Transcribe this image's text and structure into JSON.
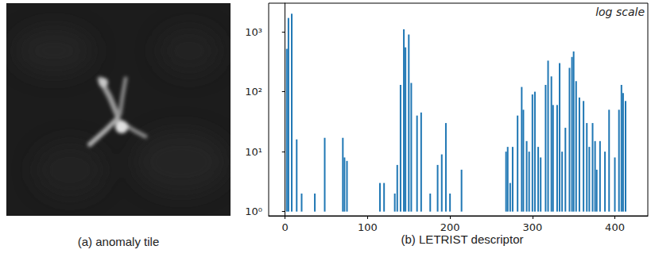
{
  "panel_a": {
    "caption": "(a) anomaly tile"
  },
  "chart_data": {
    "type": "bar",
    "title": "(b) LETRIST descriptor",
    "annotations": [
      "log scale"
    ],
    "log": "y",
    "grid": false,
    "color": "#1f77b4",
    "x": [
      2,
      4,
      8,
      14,
      20,
      30,
      34,
      36,
      38,
      48,
      70,
      72,
      75,
      98,
      115,
      120,
      133,
      136,
      140,
      144,
      146,
      150,
      153,
      160,
      165,
      176,
      185,
      190,
      195,
      200,
      210,
      214,
      245,
      250,
      268,
      270,
      273,
      276,
      282,
      287,
      289,
      293,
      296,
      300,
      303,
      307,
      310,
      316,
      319,
      323,
      325,
      330,
      333,
      336,
      340,
      345,
      348,
      350,
      353,
      357,
      362,
      366,
      369,
      373,
      376,
      378,
      382,
      388,
      393,
      400,
      405,
      408,
      410,
      413
    ],
    "values": [
      520,
      1700,
      2000,
      16,
      2,
      1,
      1,
      2,
      1,
      17,
      17,
      8,
      7,
      1,
      3,
      3,
      2,
      6,
      130,
      1100,
      550,
      900,
      140,
      40,
      45,
      2,
      6,
      9,
      30,
      2,
      1,
      5,
      1,
      1,
      10,
      12,
      3,
      12,
      40,
      120,
      50,
      15,
      10,
      90,
      100,
      12,
      8,
      130,
      330,
      180,
      60,
      60,
      300,
      10,
      25,
      250,
      380,
      470,
      150,
      80,
      70,
      30,
      12,
      30,
      15,
      5,
      15,
      10,
      50,
      8,
      50,
      130,
      95,
      70
    ],
    "xlim": [
      -20,
      440
    ],
    "xticks": [
      0,
      100,
      200,
      300,
      400
    ],
    "ylim": [
      0.85,
      3000
    ],
    "yticks": [
      {
        "value": 1,
        "label": "10⁰"
      },
      {
        "value": 10,
        "label": "10¹"
      },
      {
        "value": 100,
        "label": "10²"
      },
      {
        "value": 1000,
        "label": "10³"
      }
    ]
  }
}
